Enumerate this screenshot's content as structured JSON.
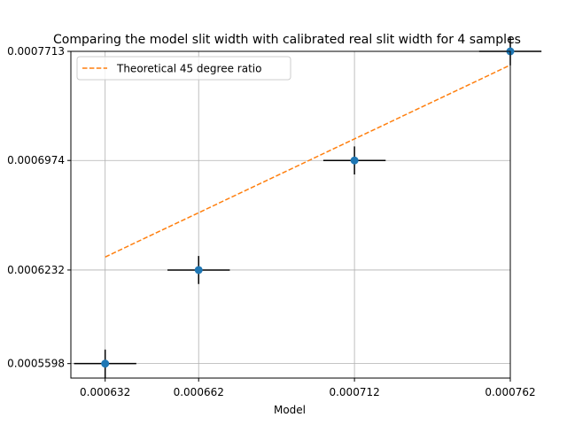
{
  "chart_data": {
    "type": "scatter",
    "title": "Comparing the model slit width with calibrated real slit width for 4 samples",
    "xlabel": "Model",
    "ylabel": "",
    "xlim": [
      0.000621,
      0.000762
    ],
    "ylim": [
      0.00055,
      0.0007713
    ],
    "x_ticks": [
      {
        "value": 0.000632,
        "label": "0.000632"
      },
      {
        "value": 0.000662,
        "label": "0.000662"
      },
      {
        "value": 0.000712,
        "label": "0.000712"
      },
      {
        "value": 0.000762,
        "label": "0.000762"
      }
    ],
    "y_ticks": [
      {
        "value": 0.0005598,
        "label": "0.0005598"
      },
      {
        "value": 0.0006232,
        "label": "0.0006232"
      },
      {
        "value": 0.0006974,
        "label": "0.0006974"
      },
      {
        "value": 0.0007713,
        "label": "0.0007713"
      }
    ],
    "grid": true,
    "legend_position": "upper left",
    "series": [
      {
        "type": "errorbar",
        "color": "#1f77b4",
        "errorbar_color": "#000000",
        "points": [
          {
            "x": 0.000632,
            "y": 0.0005598,
            "xerr": 1e-05,
            "yerr": 9.5e-06
          },
          {
            "x": 0.000662,
            "y": 0.0006232,
            "xerr": 1e-05,
            "yerr": 9.5e-06
          },
          {
            "x": 0.000712,
            "y": 0.0006974,
            "xerr": 1e-05,
            "yerr": 9.5e-06
          },
          {
            "x": 0.000762,
            "y": 0.0007713,
            "xerr": 1e-05,
            "yerr": 9.5e-06
          }
        ]
      },
      {
        "type": "line",
        "name": "Theoretical 45 degree ratio",
        "color": "#ff7f0e",
        "linestyle": "dashed",
        "x": [
          0.000632,
          0.000762
        ],
        "y": [
          0.000632,
          0.000762
        ]
      }
    ]
  }
}
